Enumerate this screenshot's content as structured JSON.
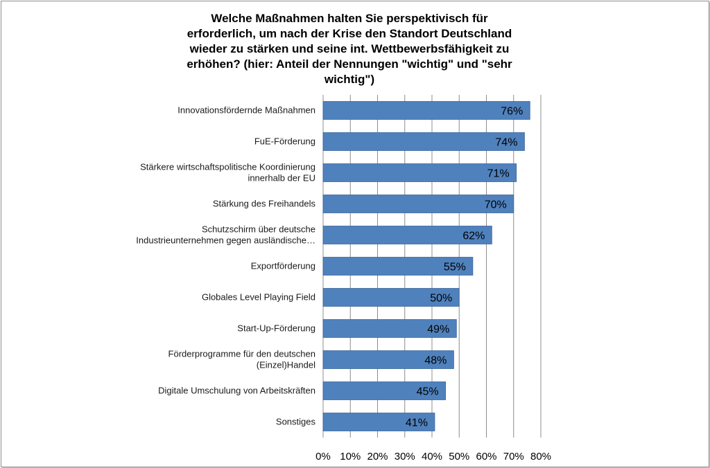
{
  "chart_data": {
    "type": "bar",
    "orientation": "horizontal",
    "title": "Welche Maßnahmen halten Sie perspektivisch für erforderlich, um nach der Krise den Standort Deutschland wieder zu stärken und seine int. Wettbewerbsfähigkeit zu erhöhen? (hier: Anteil der Nennungen \"wichtig\" und \"sehr wichtig\")",
    "categories": [
      "Innovationsfördernde Maßnahmen",
      "FuE-Förderung",
      "Stärkere wirtschaftspolitische Koordinierung innerhalb der EU",
      "Stärkung des Freihandels",
      "Schutzschirm über deutsche Industrieunternehmen gegen ausländische…",
      "Exportförderung",
      "Globales Level Playing Field",
      "Start-Up-Förderung",
      "Förderprogramme für den deutschen (Einzel)Handel",
      "Digitale Umschulung von Arbeitskräften",
      "Sonstiges"
    ],
    "category_lines": [
      [
        "Innovationsfördernde Maßnahmen"
      ],
      [
        "FuE-Förderung"
      ],
      [
        "Stärkere wirtschaftspolitische Koordinierung",
        "innerhalb der EU"
      ],
      [
        "Stärkung des Freihandels"
      ],
      [
        "Schutzschirm über deutsche",
        "Industrieunternehmen gegen ausländische…"
      ],
      [
        "Exportförderung"
      ],
      [
        "Globales Level Playing Field"
      ],
      [
        "Start-Up-Förderung"
      ],
      [
        "Förderprogramme für den deutschen",
        "(Einzel)Handel"
      ],
      [
        "Digitale Umschulung von Arbeitskräften"
      ],
      [
        "Sonstiges"
      ]
    ],
    "values": [
      76,
      74,
      71,
      70,
      62,
      55,
      50,
      49,
      48,
      45,
      41
    ],
    "data_labels": [
      "76%",
      "74%",
      "71%",
      "70%",
      "62%",
      "55%",
      "50%",
      "49%",
      "48%",
      "45%",
      "41%"
    ],
    "xlim": [
      0,
      80
    ],
    "xticks": [
      0,
      10,
      20,
      30,
      40,
      50,
      60,
      70,
      80
    ],
    "xtick_labels": [
      "0%",
      "10%",
      "20%",
      "30%",
      "40%",
      "50%",
      "60%",
      "70%",
      "80%"
    ],
    "bar_color": "#4f81bd",
    "bar_edge_color": "#3c6699",
    "grid": true,
    "grid_color": "#8c8c8c",
    "legend": "none"
  }
}
